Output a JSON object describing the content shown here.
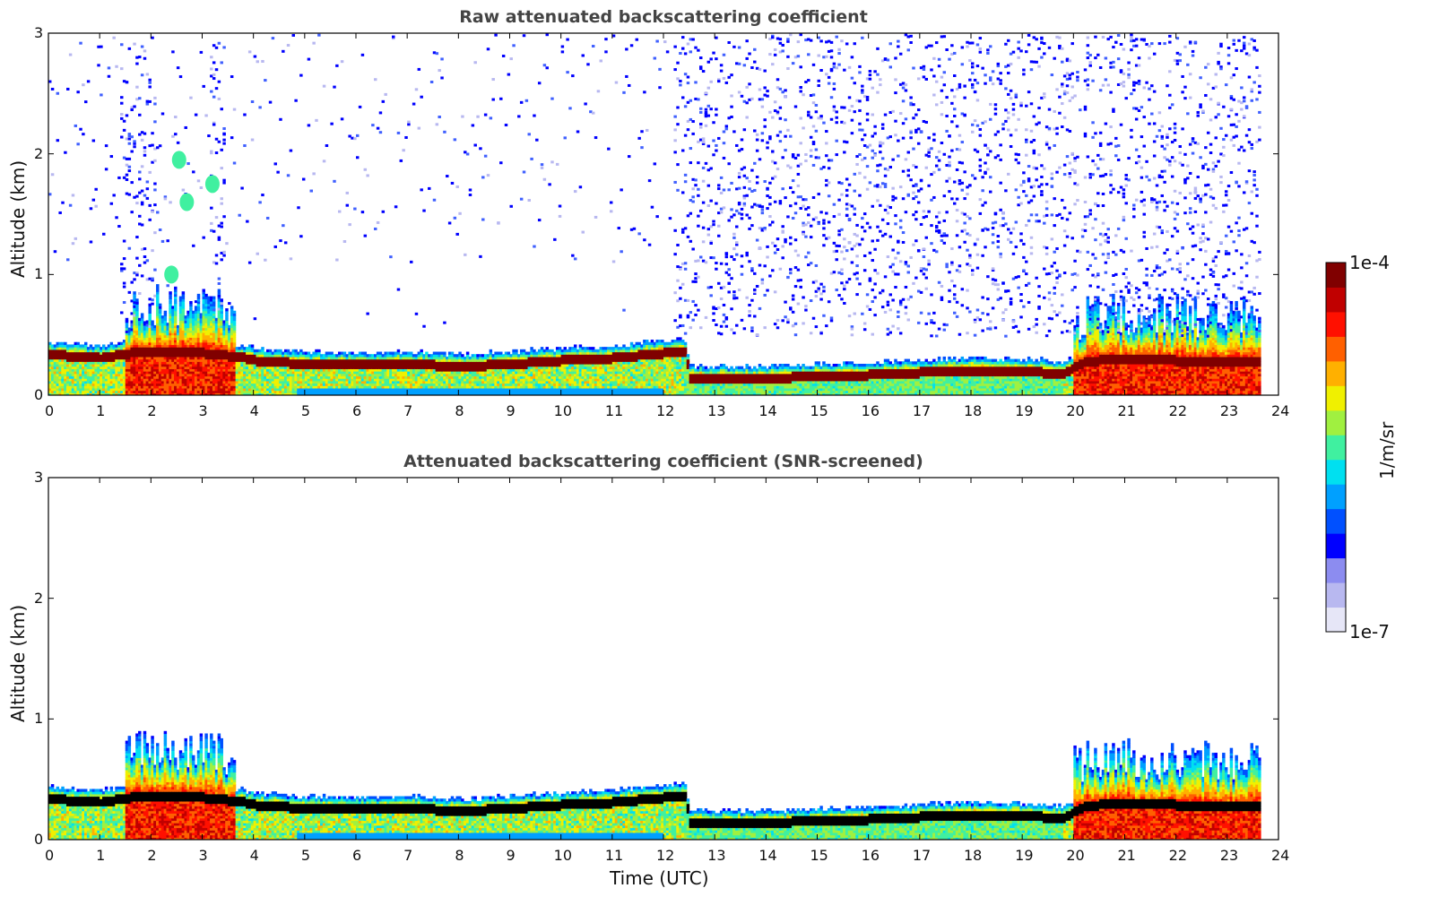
{
  "chart_data": [
    {
      "type": "heatmap",
      "title": "Raw attenuated backscattering coefficient",
      "xlabel": "",
      "ylabel": "Altitude (km)",
      "xlim": [
        0,
        24
      ],
      "ylim": [
        0,
        3
      ],
      "xticks": [
        "0",
        "1",
        "2",
        "3",
        "4",
        "5",
        "6",
        "7",
        "8",
        "9",
        "10",
        "11",
        "12",
        "13",
        "14",
        "15",
        "16",
        "17",
        "18",
        "19",
        "20",
        "21",
        "22",
        "23",
        "24"
      ],
      "yticks": [
        "0",
        "1",
        "2",
        "3"
      ],
      "data_end_time": 23.65,
      "boundary_layer_top_km": [
        [
          0,
          0.33
        ],
        [
          1,
          0.3
        ],
        [
          1.7,
          0.35
        ],
        [
          2.5,
          0.36
        ],
        [
          3.3,
          0.33
        ],
        [
          3.8,
          0.3
        ],
        [
          4,
          0.28
        ],
        [
          5,
          0.25
        ],
        [
          6,
          0.24
        ],
        [
          7,
          0.25
        ],
        [
          8,
          0.23
        ],
        [
          9,
          0.25
        ],
        [
          10,
          0.28
        ],
        [
          11,
          0.3
        ],
        [
          12,
          0.34
        ],
        [
          12.4,
          0.35
        ],
        [
          12.5,
          0.14
        ],
        [
          13,
          0.13
        ],
        [
          14,
          0.13
        ],
        [
          15,
          0.15
        ],
        [
          16,
          0.16
        ],
        [
          17,
          0.18
        ],
        [
          18,
          0.2
        ],
        [
          19,
          0.19
        ],
        [
          19.8,
          0.17
        ],
        [
          20.2,
          0.27
        ],
        [
          21,
          0.3
        ],
        [
          22,
          0.28
        ],
        [
          23,
          0.27
        ],
        [
          23.65,
          0.28
        ]
      ],
      "signal_noise_regions": [
        {
          "from": 1.4,
          "to": 2.1,
          "strength": "high"
        },
        {
          "from": 3.1,
          "to": 3.4,
          "strength": "high"
        },
        {
          "from": 12.2,
          "to": 20.1,
          "strength": "high"
        },
        {
          "from": 20.2,
          "to": 23.65,
          "strength": "high"
        }
      ],
      "aerosol_patches_km": [
        {
          "time": 2.4,
          "alt": 1.0
        },
        {
          "time": 2.7,
          "alt": 1.6
        },
        {
          "time": 3.2,
          "alt": 1.75
        },
        {
          "time": 2.55,
          "alt": 1.95
        }
      ]
    },
    {
      "type": "heatmap",
      "title": "Attenuated backscattering coefficient (SNR-screened)",
      "xlabel": "Time (UTC)",
      "ylabel": "Altitude (km)",
      "xlim": [
        0,
        24
      ],
      "ylim": [
        0,
        3
      ],
      "xticks": [
        "0",
        "1",
        "2",
        "3",
        "4",
        "5",
        "6",
        "7",
        "8",
        "9",
        "10",
        "11",
        "12",
        "13",
        "14",
        "15",
        "16",
        "17",
        "18",
        "19",
        "20",
        "21",
        "22",
        "23",
        "24"
      ],
      "yticks": [
        "0",
        "1",
        "2",
        "3"
      ],
      "data_end_time": 23.65
    }
  ],
  "colorbar": {
    "max_label": "1e-4",
    "min_label": "1e-7",
    "unit_label": "1/m/sr",
    "colors": [
      "#e6e6f7",
      "#b8b8f0",
      "#8c8cf0",
      "#0000ff",
      "#0050ff",
      "#00a0ff",
      "#00e0f0",
      "#40f0a0",
      "#a0f040",
      "#f0f000",
      "#ffb000",
      "#ff6000",
      "#ff1000",
      "#c00000",
      "#800000"
    ]
  }
}
